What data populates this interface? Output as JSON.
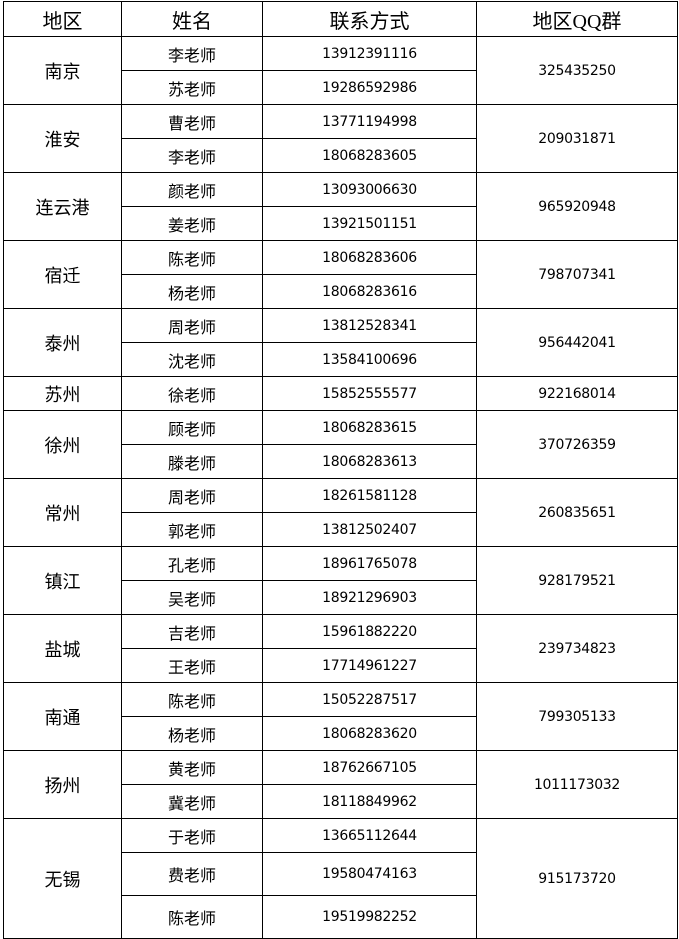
{
  "headers": [
    "地区",
    "姓名",
    "联系方式",
    "地区QQ群"
  ],
  "regions": [
    {
      "region": "南京",
      "qq": "325435250",
      "contacts": [
        {
          "name": "李老师",
          "phone": "13912391116"
        },
        {
          "name": "苏老师",
          "phone": "19286592986"
        }
      ]
    },
    {
      "region": "淮安",
      "qq": "209031871",
      "contacts": [
        {
          "name": "曹老师",
          "phone": "13771194998"
        },
        {
          "name": "李老师",
          "phone": "18068283605"
        }
      ]
    },
    {
      "region": "连云港",
      "qq": "965920948",
      "contacts": [
        {
          "name": "颜老师",
          "phone": "13093006630"
        },
        {
          "name": "姜老师",
          "phone": "13921501151"
        }
      ]
    },
    {
      "region": "宿迁",
      "qq": "798707341",
      "contacts": [
        {
          "name": "陈老师",
          "phone": "18068283606"
        },
        {
          "name": "杨老师",
          "phone": "18068283616"
        }
      ]
    },
    {
      "region": "泰州",
      "qq": "956442041",
      "contacts": [
        {
          "name": "周老师",
          "phone": "13812528341"
        },
        {
          "name": "沈老师",
          "phone": "13584100696"
        }
      ]
    },
    {
      "region": "苏州",
      "qq": "922168014",
      "contacts": [
        {
          "name": "徐老师",
          "phone": "15852555577"
        }
      ]
    },
    {
      "region": "徐州",
      "qq": "370726359",
      "contacts": [
        {
          "name": "顾老师",
          "phone": "18068283615"
        },
        {
          "name": "滕老师",
          "phone": "18068283613"
        }
      ]
    },
    {
      "region": "常州",
      "qq": "260835651",
      "contacts": [
        {
          "name": "周老师",
          "phone": "18261581128"
        },
        {
          "name": "郭老师",
          "phone": "13812502407"
        }
      ]
    },
    {
      "region": "镇江",
      "qq": "928179521",
      "contacts": [
        {
          "name": "孔老师",
          "phone": "18961765078"
        },
        {
          "name": "吴老师",
          "phone": "18921296903"
        }
      ]
    },
    {
      "region": "盐城",
      "qq": "239734823",
      "contacts": [
        {
          "name": "吉老师",
          "phone": "15961882220"
        },
        {
          "name": "王老师",
          "phone": "17714961227"
        }
      ]
    },
    {
      "region": "南通",
      "qq": "799305133",
      "contacts": [
        {
          "name": "陈老师",
          "phone": "15052287517"
        },
        {
          "name": "杨老师",
          "phone": "18068283620"
        }
      ]
    },
    {
      "region": "扬州",
      "qq": "1011173032",
      "contacts": [
        {
          "name": "黄老师",
          "phone": "18762667105"
        },
        {
          "name": "冀老师",
          "phone": "18118849962"
        }
      ]
    },
    {
      "region": "无锡",
      "qq": "915173720",
      "contacts": [
        {
          "name": "于老师",
          "phone": "13665112644"
        },
        {
          "name": "费老师",
          "phone": "19580474163"
        },
        {
          "name": "陈老师",
          "phone": "19519982252"
        }
      ]
    }
  ]
}
